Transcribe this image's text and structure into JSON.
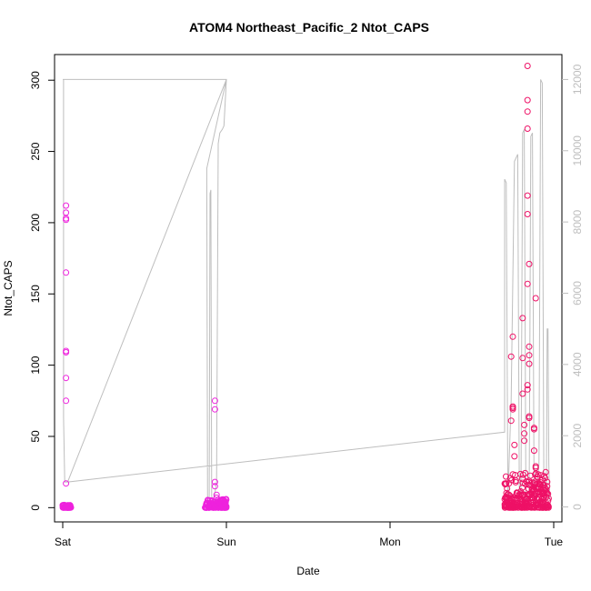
{
  "chart_data": {
    "type": "scatter",
    "title": "ATOM4 Northeast_Pacific_2 Ntot_CAPS",
    "xlabel": "Date",
    "ylabel": "Ntot_CAPS",
    "x_ticks": [
      {
        "day": 0,
        "label": "Sat"
      },
      {
        "day": 1,
        "label": "Sun"
      },
      {
        "day": 2,
        "label": "Mon"
      },
      {
        "day": 3,
        "label": "Tue"
      }
    ],
    "xlim": [
      -0.05,
      3.05
    ],
    "ylim": [
      -10,
      318
    ],
    "y_ticks": [
      0,
      50,
      100,
      150,
      200,
      250,
      300
    ],
    "y2lim": [
      -420,
      12700
    ],
    "y2_ticks": [
      0,
      2000,
      4000,
      6000,
      8000,
      10000,
      12000
    ],
    "grid": false,
    "legend": "none",
    "colors": {
      "points_early": "#ee22dd",
      "points_late": "#ee1166",
      "altitude_line": "#bebebe"
    },
    "series": [
      {
        "type": "scatter",
        "note_values": "x in days from Saturday 00:00; y = Ntot_CAPS",
        "outliers": [
          [
            0.02,
            17
          ],
          [
            0.02,
            75
          ],
          [
            0.02,
            91
          ],
          [
            0.02,
            109
          ],
          [
            0.02,
            110
          ],
          [
            0.02,
            165
          ],
          [
            0.02,
            202
          ],
          [
            0.02,
            203
          ],
          [
            0.02,
            207
          ],
          [
            0.02,
            212
          ],
          [
            0.93,
            69
          ],
          [
            0.93,
            75
          ],
          [
            0.93,
            18
          ],
          [
            0.93,
            15
          ],
          [
            0.94,
            9
          ],
          [
            0.94,
            7
          ],
          [
            2.74,
            106
          ],
          [
            2.75,
            120
          ],
          [
            2.75,
            71
          ],
          [
            2.75,
            70
          ],
          [
            2.75,
            69
          ],
          [
            2.74,
            61
          ],
          [
            2.76,
            44
          ],
          [
            2.76,
            36
          ],
          [
            2.81,
            133
          ],
          [
            2.81,
            105
          ],
          [
            2.81,
            80
          ],
          [
            2.82,
            58
          ],
          [
            2.82,
            52
          ],
          [
            2.82,
            47
          ],
          [
            2.84,
            310
          ],
          [
            2.84,
            286
          ],
          [
            2.84,
            278
          ],
          [
            2.84,
            266
          ],
          [
            2.84,
            219
          ],
          [
            2.84,
            206
          ],
          [
            2.84,
            157
          ],
          [
            2.85,
            171
          ],
          [
            2.85,
            113
          ],
          [
            2.85,
            107
          ],
          [
            2.85,
            101
          ],
          [
            2.84,
            86
          ],
          [
            2.84,
            83
          ],
          [
            2.85,
            64
          ],
          [
            2.85,
            63
          ],
          [
            2.89,
            147
          ],
          [
            2.88,
            56
          ],
          [
            2.88,
            55
          ],
          [
            2.88,
            40
          ],
          [
            2.89,
            29
          ],
          [
            2.89,
            28
          ],
          [
            2.96,
            18
          ],
          [
            2.96,
            15
          ]
        ],
        "clusters": [
          {
            "x_from": 0.0,
            "x_to": 0.05,
            "y_max": 2
          },
          {
            "x_from": 0.87,
            "x_to": 1.0,
            "y_max": 6
          },
          {
            "x_from": 2.7,
            "x_to": 2.97,
            "y_max": 25
          }
        ]
      },
      {
        "type": "line",
        "axis": "right",
        "description": "altitude",
        "points": [
          [
            0.0,
            12000
          ],
          [
            0.005,
            12000
          ],
          [
            0.005,
            2500
          ],
          [
            0.012,
            700
          ],
          [
            0.03,
            700
          ],
          [
            1.0,
            12000
          ],
          [
            0.0,
            12000
          ],
          [
            1.0,
            12000
          ],
          [
            0.88,
            9500
          ],
          [
            0.885,
            100
          ],
          [
            0.895,
            200
          ],
          [
            0.9,
            8800
          ],
          [
            0.905,
            8900
          ],
          [
            0.91,
            300
          ],
          [
            0.92,
            150
          ],
          [
            0.93,
            400
          ],
          [
            0.94,
            700
          ],
          [
            0.95,
            10200
          ],
          [
            0.96,
            10500
          ],
          [
            0.975,
            10600
          ],
          [
            0.985,
            10700
          ],
          [
            1.0,
            12000
          ],
          [
            0.03,
            700
          ],
          [
            2.7,
            2100
          ],
          [
            2.7,
            9200
          ],
          [
            2.71,
            9100
          ],
          [
            2.72,
            200
          ],
          [
            2.74,
            3000
          ],
          [
            2.76,
            9700
          ],
          [
            2.78,
            9900
          ],
          [
            2.79,
            200
          ],
          [
            2.8,
            300
          ],
          [
            2.81,
            10500
          ],
          [
            2.82,
            10600
          ],
          [
            2.83,
            200
          ],
          [
            2.85,
            200
          ],
          [
            2.86,
            10400
          ],
          [
            2.87,
            10500
          ],
          [
            2.88,
            300
          ],
          [
            2.89,
            200
          ],
          [
            2.91,
            1200
          ],
          [
            2.92,
            12000
          ],
          [
            2.93,
            11900
          ],
          [
            2.94,
            200
          ],
          [
            2.955,
            200
          ],
          [
            2.96,
            5000
          ],
          [
            2.965,
            5000
          ],
          [
            2.97,
            1200
          ],
          [
            2.975,
            200
          ]
        ]
      }
    ]
  }
}
